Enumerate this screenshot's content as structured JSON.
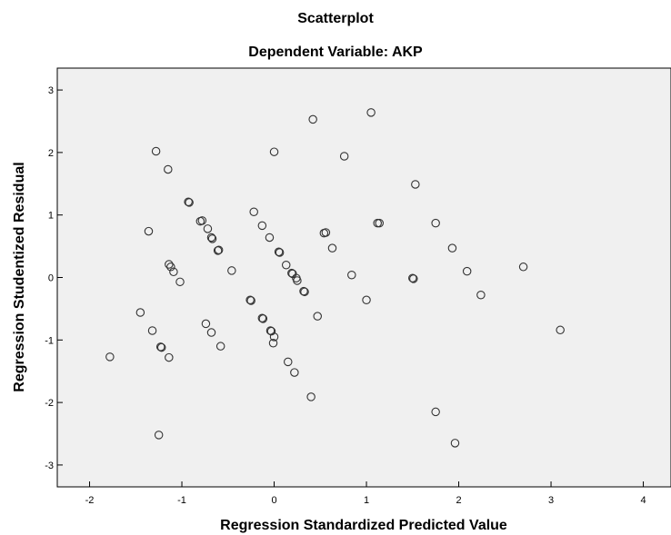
{
  "chart_data": {
    "type": "scatter",
    "title": "Scatterplot",
    "subtitle": "Dependent Variable: AKP",
    "xlabel": "Regression Standardized Predicted Value",
    "ylabel": "Regression Studentized Residual",
    "xlim": [
      -2.35,
      4.3
    ],
    "ylim": [
      -3.35,
      3.35
    ],
    "xticks": [
      -2,
      -1,
      0,
      1,
      2,
      3,
      4
    ],
    "yticks": [
      -3,
      -2,
      -1,
      0,
      1,
      2,
      3
    ],
    "plot_bg": "#f0f0f0",
    "marker_color": "#333333",
    "marker": "open-circle",
    "grid": false,
    "points": [
      [
        0.42,
        2.53
      ],
      [
        1.05,
        2.64
      ],
      [
        -1.28,
        2.02
      ],
      [
        0.0,
        2.01
      ],
      [
        0.76,
        1.94
      ],
      [
        -1.15,
        1.73
      ],
      [
        1.53,
        1.49
      ],
      [
        -0.92,
        1.2
      ],
      [
        -0.93,
        1.21
      ],
      [
        -0.22,
        1.05
      ],
      [
        -0.78,
        0.91
      ],
      [
        -0.8,
        0.9
      ],
      [
        -0.72,
        0.78
      ],
      [
        -0.13,
        0.83
      ],
      [
        1.12,
        0.87
      ],
      [
        1.14,
        0.87
      ],
      [
        1.75,
        0.87
      ],
      [
        -1.36,
        0.74
      ],
      [
        -0.68,
        0.64
      ],
      [
        -0.67,
        0.62
      ],
      [
        -0.05,
        0.64
      ],
      [
        0.54,
        0.71
      ],
      [
        0.56,
        0.72
      ],
      [
        -0.6,
        0.44
      ],
      [
        -0.61,
        0.43
      ],
      [
        0.05,
        0.41
      ],
      [
        0.06,
        0.4
      ],
      [
        0.63,
        0.47
      ],
      [
        1.93,
        0.47
      ],
      [
        -1.14,
        0.21
      ],
      [
        -1.12,
        0.17
      ],
      [
        -1.09,
        0.09
      ],
      [
        -0.46,
        0.11
      ],
      [
        0.13,
        0.2
      ],
      [
        0.19,
        0.07
      ],
      [
        0.2,
        0.06
      ],
      [
        0.24,
        -0.01
      ],
      [
        0.25,
        -0.05
      ],
      [
        0.84,
        0.04
      ],
      [
        2.09,
        0.1
      ],
      [
        2.7,
        0.17
      ],
      [
        1.5,
        -0.01
      ],
      [
        1.51,
        -0.02
      ],
      [
        -1.02,
        -0.07
      ],
      [
        0.32,
        -0.22
      ],
      [
        0.33,
        -0.23
      ],
      [
        -0.26,
        -0.36
      ],
      [
        -0.25,
        -0.37
      ],
      [
        1.0,
        -0.36
      ],
      [
        2.24,
        -0.28
      ],
      [
        -1.45,
        -0.56
      ],
      [
        0.47,
        -0.62
      ],
      [
        -0.13,
        -0.65
      ],
      [
        -0.12,
        -0.66
      ],
      [
        -0.74,
        -0.74
      ],
      [
        -1.32,
        -0.85
      ],
      [
        -0.04,
        -0.85
      ],
      [
        -0.03,
        -0.86
      ],
      [
        -0.68,
        -0.88
      ],
      [
        3.1,
        -0.84
      ],
      [
        0.0,
        -0.95
      ],
      [
        -0.01,
        -1.05
      ],
      [
        -1.23,
        -1.11
      ],
      [
        -1.22,
        -1.12
      ],
      [
        -0.58,
        -1.1
      ],
      [
        -1.78,
        -1.27
      ],
      [
        -1.14,
        -1.28
      ],
      [
        0.15,
        -1.35
      ],
      [
        0.22,
        -1.52
      ],
      [
        0.4,
        -1.91
      ],
      [
        1.75,
        -2.15
      ],
      [
        -1.25,
        -2.52
      ],
      [
        1.96,
        -2.65
      ]
    ]
  }
}
